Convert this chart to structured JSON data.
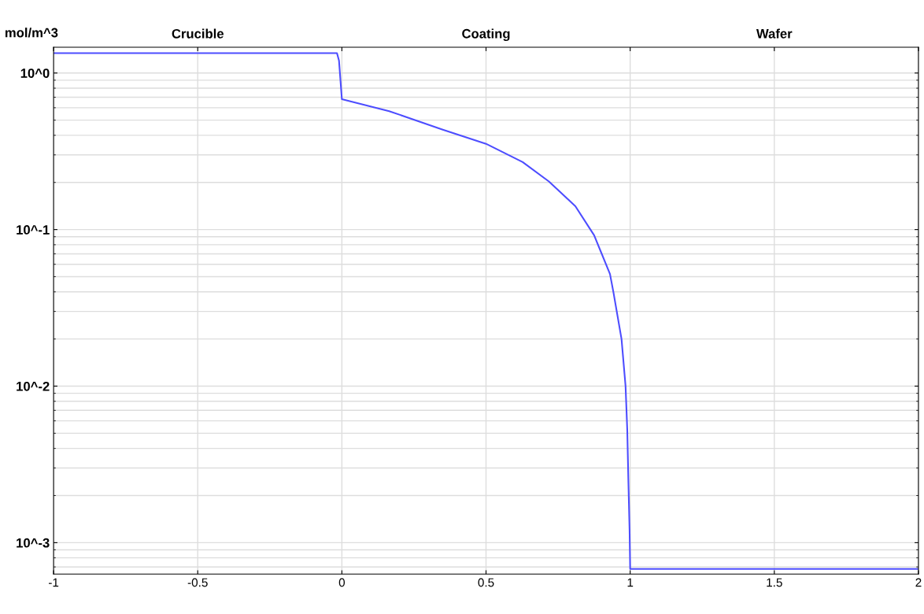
{
  "chart_data": {
    "type": "line",
    "ylabel": "mol/m^3",
    "annotations": [
      "Crucible",
      "Coating",
      "Wafer"
    ],
    "x": [
      -1,
      -0.017,
      -0.01,
      0.0,
      0.164,
      0.348,
      0.5,
      0.627,
      0.718,
      0.81,
      0.875,
      0.93,
      0.942,
      0.97,
      0.984,
      0.99,
      0.994,
      0.998,
      1.0,
      2
    ],
    "series": [
      {
        "color": "#4d4dff",
        "values": [
          1.34,
          1.34,
          1.2,
          0.68,
          0.571,
          0.436,
          0.353,
          0.27,
          0.203,
          0.141,
          0.092,
          0.052,
          0.0397,
          0.02,
          0.01,
          0.0052,
          0.0024,
          0.0012,
          0.00068,
          0.00068
        ]
      }
    ],
    "xlim": [
      -1,
      2
    ],
    "xticks": [
      -1,
      -0.5,
      0,
      0.5,
      1,
      1.5,
      2
    ],
    "ylim": [
      0.00063,
      1.46
    ],
    "yticks": [
      {
        "value": 0.001,
        "label": "10^-3"
      },
      {
        "value": 0.01,
        "label": "10^-2"
      },
      {
        "value": 0.1,
        "label": "10^-1"
      },
      {
        "value": 1,
        "label": "10^0"
      }
    ],
    "log": "y",
    "grid": true,
    "marker": "none",
    "line_style": "solid"
  }
}
